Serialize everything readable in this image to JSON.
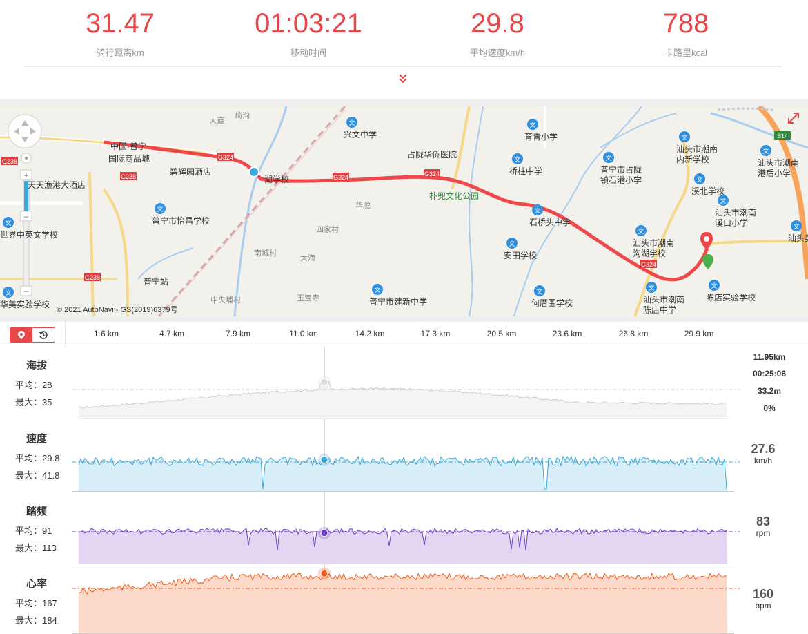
{
  "stats": [
    {
      "value": "31.47",
      "label": "骑行距离km"
    },
    {
      "value": "01:03:21",
      "label": "移动时间"
    },
    {
      "value": "29.8",
      "label": "平均速度km/h"
    },
    {
      "value": "788",
      "label": "卡路里kcal"
    }
  ],
  "map": {
    "copyright": "© 2021 AutoNavi - GS(2019)6379号",
    "labels": [
      "兴文中学",
      "占陇华侨医院",
      "育青小学",
      "桥柱中学",
      "普宁市占陇镇石港小学",
      "汕头市潮南内新学校",
      "汕头市潮南港后小学",
      "溪北学校",
      "汕头市潮南溪口小学",
      "石桥头中学",
      "汕头市潮南沟湖学校",
      "安田学校",
      "朴兜文化公园",
      "华陇",
      "四家村",
      "南城村",
      "大海",
      "碧辉园酒店",
      "国际商品城",
      "天天渔港大酒店",
      "普宁市怡昌学校",
      "世界中英文学校",
      "普宁站",
      "华美实验学校",
      "中央埔村",
      "玉宝寺",
      "普宁市建新中学",
      "何厝围学校",
      "汕头市潮南陈店中学",
      "陈店实验学校",
      "汕头美朱",
      "大道",
      "崎沟",
      "中国·普宁",
      "湖学校"
    ],
    "road_badges": [
      "G238",
      "G238",
      "G238",
      "G324",
      "G324",
      "G324",
      "G324",
      "S14"
    ]
  },
  "axis": {
    "ticks": [
      "1.6 km",
      "4.7 km",
      "7.9 km",
      "11.0 km",
      "14.2 km",
      "17.3 km",
      "20.5 km",
      "23.6 km",
      "26.8 km",
      "29.9 km"
    ]
  },
  "panels": [
    {
      "name": "海拔",
      "avg": "平均：28",
      "max": "最大：35"
    },
    {
      "name": "速度",
      "avg": "平均：29.8",
      "max": "最大：41.8",
      "value": "27.6",
      "unit": "km/h"
    },
    {
      "name": "踏频",
      "avg": "平均：91",
      "max": "最大：113",
      "value": "83",
      "unit": "rpm"
    },
    {
      "name": "心率",
      "avg": "平均：167",
      "max": "最大：184",
      "value": "160",
      "unit": "bpm"
    }
  ],
  "elevation_readout": {
    "distance": "11.95km",
    "time": "00:25:06",
    "altitude": "33.2m",
    "grade": "0%"
  },
  "colors": {
    "accent": "#e8474a",
    "route": "#f0474a",
    "speed": "#3aa8d8",
    "cadence": "#6a3fc4",
    "heart": "#f05a1a",
    "elevation": "#cccccc"
  },
  "chart_data": [
    {
      "type": "area",
      "series": [
        {
          "name": "海拔",
          "avg": 28,
          "max": 35
        }
      ],
      "x_unit": "km",
      "cursor_x": 11.95,
      "cursor_value": 33.2
    },
    {
      "type": "area",
      "series": [
        {
          "name": "速度",
          "avg": 29.8,
          "max": 41.8
        }
      ],
      "x_unit": "km",
      "cursor_x": 11.95,
      "cursor_value": 27.6
    },
    {
      "type": "area",
      "series": [
        {
          "name": "踏频",
          "avg": 91,
          "max": 113
        }
      ],
      "x_unit": "km",
      "cursor_x": 11.95,
      "cursor_value": 83
    },
    {
      "type": "area",
      "series": [
        {
          "name": "心率",
          "avg": 167,
          "max": 184
        }
      ],
      "x_unit": "km",
      "cursor_x": 11.95,
      "cursor_value": 160
    }
  ]
}
